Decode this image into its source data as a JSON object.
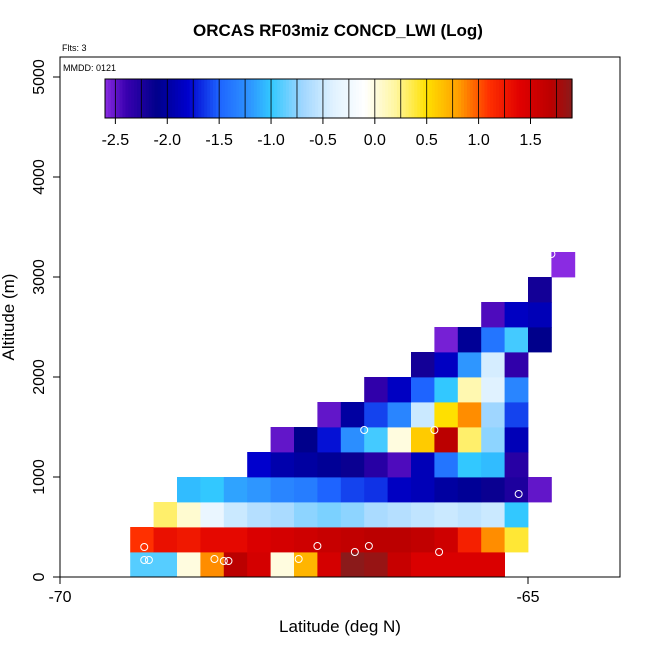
{
  "chart_data": {
    "type": "heatmap",
    "title": "ORCAS RF03miz CONCD_LWI (Log)",
    "xlabel": "Latitude (deg N)",
    "ylabel": "Altitude (m)",
    "flts_label": "Flts: 3",
    "mmdd_label": "MMDD: 0121",
    "xlim": [
      -70,
      -64.0
    ],
    "ylim": [
      0,
      5200
    ],
    "x_ticks": [
      {
        "value": -70,
        "label": "-70"
      },
      {
        "value": -65,
        "label": "-65"
      }
    ],
    "y_ticks": [
      {
        "value": 0,
        "label": "0"
      },
      {
        "value": 1000,
        "label": "1000"
      },
      {
        "value": 2000,
        "label": "2000"
      },
      {
        "value": 3000,
        "label": "3000"
      },
      {
        "value": 4000,
        "label": "4000"
      },
      {
        "value": 5000,
        "label": "5000"
      }
    ],
    "colorbar": {
      "range": [
        -2.6,
        1.9
      ],
      "tick_values": [
        -2.5,
        -2.0,
        -1.5,
        -1.0,
        -0.5,
        0.0,
        0.5,
        1.0,
        1.5
      ],
      "tick_labels": [
        "-2.5",
        "-2.0",
        "-1.5",
        "-1.0",
        "-0.5",
        "0.0",
        "0.5",
        "1.0",
        "1.5"
      ],
      "stops": [
        {
          "v": -2.6,
          "c": "#8a2be2"
        },
        {
          "v": -2.4,
          "c": "#3a00b0"
        },
        {
          "v": -2.1,
          "c": "#00008b"
        },
        {
          "v": -1.8,
          "c": "#0000cd"
        },
        {
          "v": -1.5,
          "c": "#1e64ff"
        },
        {
          "v": -1.2,
          "c": "#2e96ff"
        },
        {
          "v": -1.0,
          "c": "#32c8ff"
        },
        {
          "v": -0.7,
          "c": "#9fd6ff"
        },
        {
          "v": -0.4,
          "c": "#e0f2ff"
        },
        {
          "v": -0.1,
          "c": "#ffffff"
        },
        {
          "v": 0.2,
          "c": "#fff6a0"
        },
        {
          "v": 0.5,
          "c": "#ffe000"
        },
        {
          "v": 0.8,
          "c": "#ffa000"
        },
        {
          "v": 1.1,
          "c": "#ff3000"
        },
        {
          "v": 1.4,
          "c": "#e00000"
        },
        {
          "v": 1.7,
          "c": "#bb0000"
        },
        {
          "v": 1.9,
          "c": "#8b1a1a"
        }
      ]
    },
    "cell": {
      "lat_width": 0.25,
      "alt_height": 250
    },
    "cells": [
      {
        "lat": -69.25,
        "alt": 0,
        "value": -0.9
      },
      {
        "lat": -69.0,
        "alt": 0,
        "value": -0.9
      },
      {
        "lat": -68.75,
        "alt": 0,
        "value": 0.0
      },
      {
        "lat": -68.5,
        "alt": 0,
        "value": 0.85
      },
      {
        "lat": -68.25,
        "alt": 0,
        "value": 1.7
      },
      {
        "lat": -68.0,
        "alt": 0,
        "value": 1.5
      },
      {
        "lat": -67.75,
        "alt": 0,
        "value": 0.0
      },
      {
        "lat": -67.5,
        "alt": 0,
        "value": 0.7
      },
      {
        "lat": -67.25,
        "alt": 0,
        "value": 1.5
      },
      {
        "lat": -67.0,
        "alt": 0,
        "value": 1.9
      },
      {
        "lat": -66.75,
        "alt": 0,
        "value": 1.85
      },
      {
        "lat": -66.5,
        "alt": 0,
        "value": 1.6
      },
      {
        "lat": -66.25,
        "alt": 0,
        "value": 1.45
      },
      {
        "lat": -66.0,
        "alt": 0,
        "value": 1.45
      },
      {
        "lat": -65.75,
        "alt": 0,
        "value": 1.45
      },
      {
        "lat": -65.5,
        "alt": 0,
        "value": 1.45
      },
      {
        "lat": -69.25,
        "alt": 250,
        "value": 1.1
      },
      {
        "lat": -69.0,
        "alt": 250,
        "value": 1.3
      },
      {
        "lat": -68.75,
        "alt": 250,
        "value": 1.25
      },
      {
        "lat": -68.5,
        "alt": 250,
        "value": 1.35
      },
      {
        "lat": -68.25,
        "alt": 250,
        "value": 1.35
      },
      {
        "lat": -68.0,
        "alt": 250,
        "value": 1.45
      },
      {
        "lat": -67.75,
        "alt": 250,
        "value": 1.5
      },
      {
        "lat": -67.5,
        "alt": 250,
        "value": 1.55
      },
      {
        "lat": -67.25,
        "alt": 250,
        "value": 1.6
      },
      {
        "lat": -67.0,
        "alt": 250,
        "value": 1.65
      },
      {
        "lat": -66.75,
        "alt": 250,
        "value": 1.7
      },
      {
        "lat": -66.5,
        "alt": 250,
        "value": 1.7
      },
      {
        "lat": -66.25,
        "alt": 250,
        "value": 1.65
      },
      {
        "lat": -66.0,
        "alt": 250,
        "value": 1.55
      },
      {
        "lat": -65.75,
        "alt": 250,
        "value": 1.2
      },
      {
        "lat": -65.5,
        "alt": 250,
        "value": 0.85
      },
      {
        "lat": -65.25,
        "alt": 250,
        "value": 0.4
      },
      {
        "lat": -69.0,
        "alt": 500,
        "value": 0.3
      },
      {
        "lat": -68.75,
        "alt": 500,
        "value": 0.05
      },
      {
        "lat": -68.5,
        "alt": 500,
        "value": -0.3
      },
      {
        "lat": -68.25,
        "alt": 500,
        "value": -0.5
      },
      {
        "lat": -68.0,
        "alt": 500,
        "value": -0.6
      },
      {
        "lat": -67.75,
        "alt": 500,
        "value": -0.65
      },
      {
        "lat": -67.5,
        "alt": 500,
        "value": -0.75
      },
      {
        "lat": -67.25,
        "alt": 500,
        "value": -0.8
      },
      {
        "lat": -67.0,
        "alt": 500,
        "value": -0.75
      },
      {
        "lat": -66.75,
        "alt": 500,
        "value": -0.65
      },
      {
        "lat": -66.5,
        "alt": 500,
        "value": -0.6
      },
      {
        "lat": -66.25,
        "alt": 500,
        "value": -0.55
      },
      {
        "lat": -66.0,
        "alt": 500,
        "value": -0.5
      },
      {
        "lat": -65.75,
        "alt": 500,
        "value": -0.55
      },
      {
        "lat": -65.5,
        "alt": 500,
        "value": -0.5
      },
      {
        "lat": -65.25,
        "alt": 500,
        "value": -1.0
      },
      {
        "lat": -68.75,
        "alt": 750,
        "value": -1.05
      },
      {
        "lat": -68.5,
        "alt": 750,
        "value": -1.0
      },
      {
        "lat": -68.25,
        "alt": 750,
        "value": -1.15
      },
      {
        "lat": -68.0,
        "alt": 750,
        "value": -1.2
      },
      {
        "lat": -67.75,
        "alt": 750,
        "value": -1.3
      },
      {
        "lat": -67.5,
        "alt": 750,
        "value": -1.35
      },
      {
        "lat": -67.25,
        "alt": 750,
        "value": -1.5
      },
      {
        "lat": -67.0,
        "alt": 750,
        "value": -1.6
      },
      {
        "lat": -66.75,
        "alt": 750,
        "value": -1.65
      },
      {
        "lat": -66.5,
        "alt": 750,
        "value": -1.85
      },
      {
        "lat": -66.25,
        "alt": 750,
        "value": -1.9
      },
      {
        "lat": -66.0,
        "alt": 750,
        "value": -2.0
      },
      {
        "lat": -65.75,
        "alt": 750,
        "value": -2.05
      },
      {
        "lat": -65.5,
        "alt": 750,
        "value": -2.15
      },
      {
        "lat": -65.25,
        "alt": 750,
        "value": -2.25
      },
      {
        "lat": -65.0,
        "alt": 750,
        "value": -2.5
      },
      {
        "lat": -68.0,
        "alt": 1000,
        "value": -1.8
      },
      {
        "lat": -67.75,
        "alt": 1000,
        "value": -1.95
      },
      {
        "lat": -67.5,
        "alt": 1000,
        "value": -2.0
      },
      {
        "lat": -67.25,
        "alt": 1000,
        "value": -2.05
      },
      {
        "lat": -67.0,
        "alt": 1000,
        "value": -2.15
      },
      {
        "lat": -66.75,
        "alt": 1000,
        "value": -2.3
      },
      {
        "lat": -66.5,
        "alt": 1000,
        "value": -2.45
      },
      {
        "lat": -66.25,
        "alt": 1000,
        "value": -1.9
      },
      {
        "lat": -66.0,
        "alt": 1000,
        "value": -1.4
      },
      {
        "lat": -65.75,
        "alt": 1000,
        "value": -1.0
      },
      {
        "lat": -65.5,
        "alt": 1000,
        "value": -1.05
      },
      {
        "lat": -65.25,
        "alt": 1000,
        "value": -2.3
      },
      {
        "lat": -67.75,
        "alt": 1250,
        "value": -2.5
      },
      {
        "lat": -67.5,
        "alt": 1250,
        "value": -2.1
      },
      {
        "lat": -67.25,
        "alt": 1250,
        "value": -1.75
      },
      {
        "lat": -67.0,
        "alt": 1250,
        "value": -1.25
      },
      {
        "lat": -66.75,
        "alt": 1250,
        "value": -0.95
      },
      {
        "lat": -66.5,
        "alt": 1250,
        "value": 0.0
      },
      {
        "lat": -66.25,
        "alt": 1250,
        "value": 0.6
      },
      {
        "lat": -66.0,
        "alt": 1250,
        "value": 1.7
      },
      {
        "lat": -65.75,
        "alt": 1250,
        "value": 0.3
      },
      {
        "lat": -65.5,
        "alt": 1250,
        "value": -0.75
      },
      {
        "lat": -65.25,
        "alt": 1250,
        "value": -1.9
      },
      {
        "lat": -67.25,
        "alt": 1500,
        "value": -2.5
      },
      {
        "lat": -67.0,
        "alt": 1500,
        "value": -2.0
      },
      {
        "lat": -66.75,
        "alt": 1500,
        "value": -1.6
      },
      {
        "lat": -66.5,
        "alt": 1500,
        "value": -1.3
      },
      {
        "lat": -66.25,
        "alt": 1500,
        "value": -0.5
      },
      {
        "lat": -66.0,
        "alt": 1500,
        "value": 0.5
      },
      {
        "lat": -65.75,
        "alt": 1500,
        "value": 0.85
      },
      {
        "lat": -65.5,
        "alt": 1500,
        "value": -0.7
      },
      {
        "lat": -65.25,
        "alt": 1500,
        "value": -1.6
      },
      {
        "lat": -66.75,
        "alt": 1750,
        "value": -2.35
      },
      {
        "lat": -66.5,
        "alt": 1750,
        "value": -1.85
      },
      {
        "lat": -66.25,
        "alt": 1750,
        "value": -1.5
      },
      {
        "lat": -66.0,
        "alt": 1750,
        "value": -1.0
      },
      {
        "lat": -65.75,
        "alt": 1750,
        "value": 0.15
      },
      {
        "lat": -65.5,
        "alt": 1750,
        "value": -0.4
      },
      {
        "lat": -65.25,
        "alt": 1750,
        "value": -1.3
      },
      {
        "lat": -66.25,
        "alt": 2000,
        "value": -2.2
      },
      {
        "lat": -66.0,
        "alt": 2000,
        "value": -1.85
      },
      {
        "lat": -65.75,
        "alt": 2000,
        "value": -1.2
      },
      {
        "lat": -65.5,
        "alt": 2000,
        "value": -0.45
      },
      {
        "lat": -65.25,
        "alt": 2000,
        "value": -2.35
      },
      {
        "lat": -66.0,
        "alt": 2250,
        "value": -2.55
      },
      {
        "lat": -65.75,
        "alt": 2250,
        "value": -2.05
      },
      {
        "lat": -65.5,
        "alt": 2250,
        "value": -1.4
      },
      {
        "lat": -65.25,
        "alt": 2250,
        "value": -0.95
      },
      {
        "lat": -65.0,
        "alt": 2250,
        "value": -2.1
      },
      {
        "lat": -65.5,
        "alt": 2500,
        "value": -2.45
      },
      {
        "lat": -65.25,
        "alt": 2500,
        "value": -1.85
      },
      {
        "lat": -65.0,
        "alt": 2500,
        "value": -1.9
      },
      {
        "lat": -65.0,
        "alt": 2750,
        "value": -2.2
      },
      {
        "lat": -64.75,
        "alt": 3000,
        "value": -2.6
      }
    ],
    "points": [
      {
        "lat": -69.1,
        "alt": 170
      },
      {
        "lat": -69.05,
        "alt": 170
      },
      {
        "lat": -69.1,
        "alt": 300
      },
      {
        "lat": -68.35,
        "alt": 180
      },
      {
        "lat": -68.25,
        "alt": 160
      },
      {
        "lat": -68.2,
        "alt": 160
      },
      {
        "lat": -67.45,
        "alt": 180
      },
      {
        "lat": -67.25,
        "alt": 310
      },
      {
        "lat": -66.85,
        "alt": 250
      },
      {
        "lat": -66.7,
        "alt": 310
      },
      {
        "lat": -65.95,
        "alt": 250
      },
      {
        "lat": -67.85,
        "alt": 1470
      },
      {
        "lat": -66.75,
        "alt": 1470
      },
      {
        "lat": -66.0,
        "alt": 1470
      },
      {
        "lat": -65.1,
        "alt": 830
      },
      {
        "lat": -64.75,
        "alt": 3230
      }
    ]
  }
}
